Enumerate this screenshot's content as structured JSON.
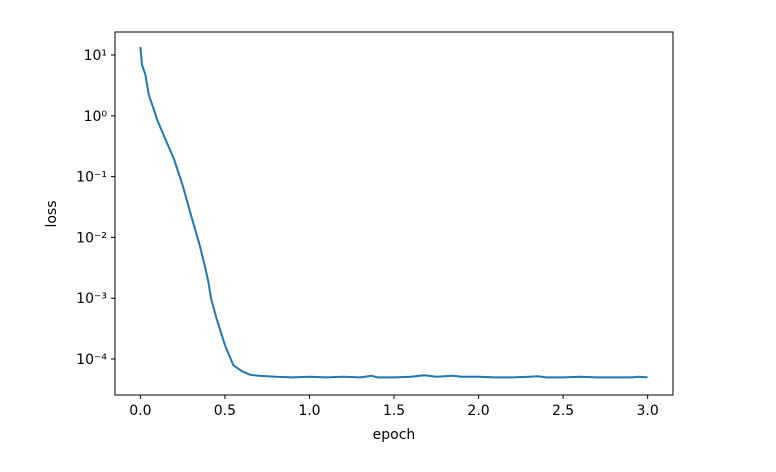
{
  "chart_data": {
    "type": "line",
    "log_y": true,
    "xlabel": "epoch",
    "ylabel": "loss",
    "x": [
      0.0,
      0.01,
      0.03,
      0.05,
      0.08,
      0.1,
      0.15,
      0.2,
      0.25,
      0.3,
      0.35,
      0.38,
      0.4,
      0.42,
      0.45,
      0.5,
      0.55,
      0.6,
      0.65,
      0.7,
      0.8,
      0.9,
      1.0,
      1.1,
      1.2,
      1.3,
      1.37,
      1.4,
      1.5,
      1.6,
      1.68,
      1.75,
      1.85,
      1.9,
      2.0,
      2.1,
      2.2,
      2.3,
      2.35,
      2.4,
      2.5,
      2.6,
      2.7,
      2.8,
      2.9,
      2.95,
      3.0
    ],
    "series": [
      {
        "name": "loss",
        "color": "#1f77b4",
        "values": [
          13.5,
          6.9,
          4.7,
          2.2,
          1.26,
          0.85,
          0.4,
          0.19,
          0.072,
          0.023,
          0.0076,
          0.0035,
          0.002,
          0.00094,
          0.00047,
          0.00017,
          7.9e-05,
          6.3e-05,
          5.5e-05,
          5.3e-05,
          5.1e-05,
          5e-05,
          5.1e-05,
          5e-05,
          5.1e-05,
          5e-05,
          5.3e-05,
          5e-05,
          5e-05,
          5.1e-05,
          5.4e-05,
          5.1e-05,
          5.3e-05,
          5.1e-05,
          5.1e-05,
          5e-05,
          5e-05,
          5.1e-05,
          5.2e-05,
          5e-05,
          5e-05,
          5.1e-05,
          5e-05,
          5e-05,
          5e-05,
          5.1e-05,
          5e-05
        ]
      }
    ],
    "xlim": [
      -0.15,
      3.15
    ],
    "xticks": [
      {
        "value": 0,
        "label": "0.0"
      },
      0.5,
      {
        "value": 1,
        "label": "1.0"
      },
      1.5,
      {
        "value": 2,
        "label": "2.0"
      },
      2.5,
      {
        "value": 3,
        "label": "3.0"
      }
    ],
    "ylim": [
      2.56e-05,
      23.9
    ],
    "yticks": [
      {
        "value": 0.0001,
        "label": "10⁻⁴"
      },
      {
        "value": 0.001,
        "label": "10⁻³"
      },
      {
        "value": 0.01,
        "label": "10⁻²"
      },
      {
        "value": 0.1,
        "label": "10⁻¹"
      },
      {
        "value": 1,
        "label": "10⁰"
      },
      {
        "value": 10,
        "label": "10¹"
      }
    ],
    "grid": false
  }
}
